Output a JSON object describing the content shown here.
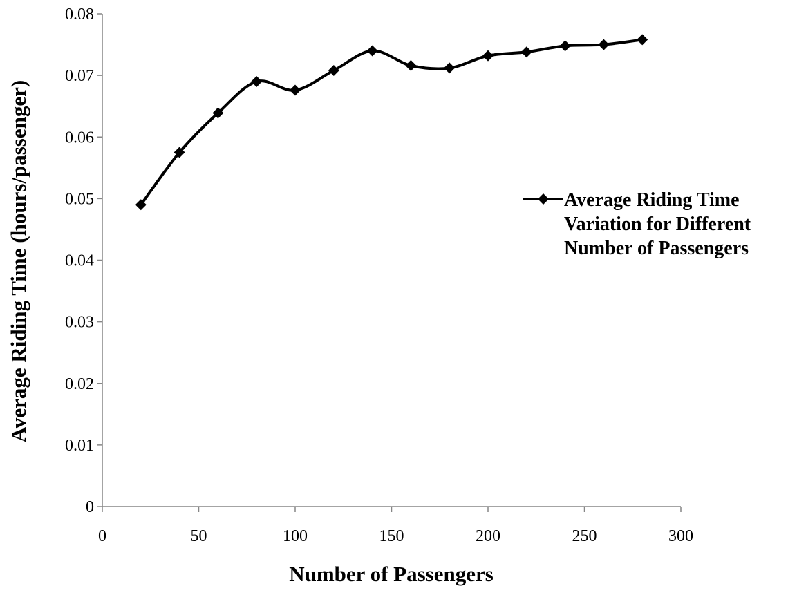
{
  "chart_data": {
    "type": "line",
    "title": "",
    "xlabel": "Number of Passengers",
    "ylabel": "Average Riding Time (hours/passenger)",
    "xlim": [
      0,
      300
    ],
    "ylim": [
      0,
      0.08
    ],
    "x_ticks": [
      0,
      50,
      100,
      150,
      200,
      250,
      300
    ],
    "x_tick_labels": [
      "0",
      "50",
      "100",
      "150",
      "200",
      "250",
      "300"
    ],
    "y_ticks": [
      0,
      0.01,
      0.02,
      0.03,
      0.04,
      0.05,
      0.06,
      0.07,
      0.08
    ],
    "y_tick_labels": [
      "0",
      "0.01",
      "0.02",
      "0.03",
      "0.04",
      "0.05",
      "0.06",
      "0.07",
      "0.08"
    ],
    "grid": false,
    "legend_position": "right",
    "smooth": true,
    "marker": "diamond",
    "series": [
      {
        "name": "Average Riding Time Variation for Different Number of Passengers",
        "legend_lines": [
          "Average Riding Time",
          "Variation for Different",
          "Number of Passengers"
        ],
        "color": "#000000",
        "x": [
          20,
          40,
          60,
          80,
          100,
          120,
          140,
          160,
          180,
          200,
          220,
          240,
          260,
          280
        ],
        "y": [
          0.049,
          0.0575,
          0.0639,
          0.069,
          0.0676,
          0.0708,
          0.074,
          0.0716,
          0.0712,
          0.0732,
          0.0738,
          0.0748,
          0.075,
          0.0758
        ]
      }
    ]
  }
}
